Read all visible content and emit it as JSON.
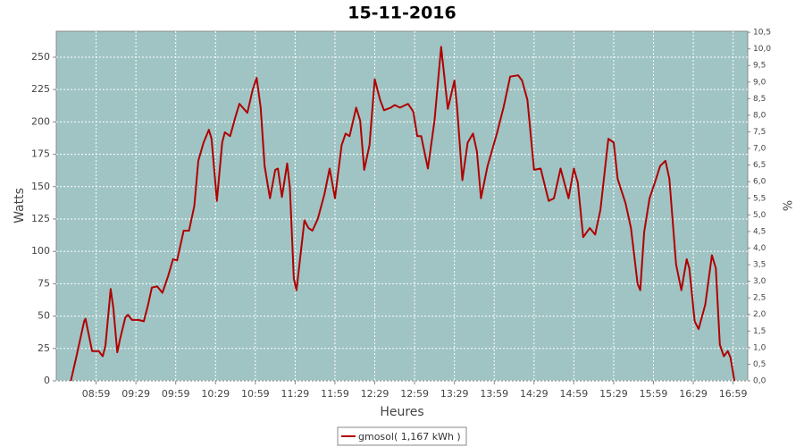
{
  "chart_data": {
    "type": "line",
    "title": "15-11-2016",
    "xlabel": "Heures",
    "ylabel": "Watts",
    "y2label": "%",
    "x": [
      "08:40",
      "08:44",
      "08:50",
      "08:51",
      "08:56",
      "09:01",
      "09:04",
      "09:06",
      "09:10",
      "09:12",
      "09:15",
      "09:17",
      "09:21",
      "09:23",
      "09:26",
      "09:31",
      "09:35",
      "09:38",
      "09:41",
      "09:45",
      "09:49",
      "09:53",
      "09:57",
      "10:00",
      "10:05",
      "10:09",
      "10:13",
      "10:16",
      "10:20",
      "10:24",
      "10:26",
      "10:30",
      "10:34",
      "10:36",
      "10:40",
      "10:44",
      "10:47",
      "10:53",
      "10:57",
      "11:00",
      "11:03",
      "11:06",
      "11:10",
      "11:14",
      "11:16",
      "11:19",
      "11:23",
      "11:25",
      "11:28",
      "11:30",
      "11:36",
      "11:39",
      "11:42",
      "11:46",
      "11:51",
      "11:55",
      "11:59",
      "12:04",
      "12:07",
      "12:10",
      "12:15",
      "12:18",
      "12:21",
      "12:25",
      "12:29",
      "12:33",
      "12:36",
      "12:41",
      "12:44",
      "12:48",
      "12:54",
      "12:58",
      "13:01",
      "13:04",
      "13:09",
      "13:14",
      "13:19",
      "13:24",
      "13:29",
      "13:31",
      "13:35",
      "13:39",
      "13:43",
      "13:46",
      "13:49",
      "13:54",
      "14:01",
      "14:06",
      "14:11",
      "14:17",
      "14:20",
      "14:24",
      "14:29",
      "14:34",
      "14:40",
      "14:44",
      "14:49",
      "14:55",
      "14:59",
      "15:02",
      "15:06",
      "15:11",
      "15:15",
      "15:19",
      "15:25",
      "15:29",
      "15:32",
      "15:38",
      "15:42",
      "15:47",
      "15:49",
      "15:52",
      "15:56",
      "16:00",
      "16:04",
      "16:08",
      "16:11",
      "16:16",
      "16:20",
      "16:24",
      "16:26",
      "16:30",
      "16:33",
      "16:38",
      "16:43",
      "16:46",
      "16:49",
      "16:52",
      "16:55",
      "16:57",
      "17:00"
    ],
    "series": [
      {
        "name": "gmosol( 1,167 kWh )",
        "color": "#b00000",
        "values": [
          0,
          18,
          46,
          48,
          23,
          23,
          19,
          27,
          71,
          56,
          22,
          32,
          49,
          51,
          47,
          47,
          46,
          58,
          72,
          73,
          68,
          80,
          94,
          93,
          116,
          116,
          135,
          170,
          184,
          194,
          187,
          139,
          184,
          192,
          189,
          204,
          214,
          207,
          225,
          234,
          211,
          166,
          141,
          163,
          164,
          142,
          168,
          149,
          79,
          70,
          124,
          118,
          116,
          125,
          144,
          164,
          141,
          182,
          191,
          189,
          211,
          201,
          163,
          182,
          233,
          217,
          209,
          211,
          213,
          211,
          214,
          208,
          189,
          189,
          164,
          201,
          258,
          210,
          232,
          211,
          155,
          184,
          191,
          177,
          141,
          166,
          191,
          211,
          235,
          236,
          232,
          217,
          163,
          164,
          139,
          141,
          164,
          141,
          164,
          153,
          111,
          118,
          113,
          132,
          187,
          184,
          156,
          137,
          118,
          75,
          70,
          115,
          141,
          153,
          166,
          170,
          156,
          90,
          70,
          94,
          87,
          46,
          40,
          59,
          97,
          87,
          28,
          19,
          23,
          18,
          0
        ]
      }
    ],
    "xlim": [
      "08:29",
      "17:10"
    ],
    "xticks": [
      "08:59",
      "09:29",
      "09:59",
      "10:29",
      "10:59",
      "11:29",
      "11:59",
      "12:29",
      "12:59",
      "13:29",
      "13:59",
      "14:29",
      "14:59",
      "15:29",
      "15:59",
      "16:29",
      "16:59"
    ],
    "ylim": [
      0,
      270
    ],
    "yticks": [
      0,
      25,
      50,
      75,
      100,
      125,
      150,
      175,
      200,
      225,
      250
    ],
    "y2lim": [
      0,
      10.53
    ],
    "y2ticks": [
      {
        "value": 0,
        "label": "0,0"
      },
      {
        "value": 0.5,
        "label": "0,5"
      },
      {
        "value": 1,
        "label": "1,0"
      },
      {
        "value": 1.5,
        "label": "1,5"
      },
      {
        "value": 2,
        "label": "2,0"
      },
      {
        "value": 2.5,
        "label": "2,5"
      },
      {
        "value": 3,
        "label": "3,0"
      },
      {
        "value": 3.5,
        "label": "3,5"
      },
      {
        "value": 4,
        "label": "4,0"
      },
      {
        "value": 4.5,
        "label": "4,5"
      },
      {
        "value": 5,
        "label": "5,0"
      },
      {
        "value": 5.5,
        "label": "5,5"
      },
      {
        "value": 6,
        "label": "6,0"
      },
      {
        "value": 6.5,
        "label": "6,5"
      },
      {
        "value": 7,
        "label": "7,0"
      },
      {
        "value": 7.5,
        "label": "7,5"
      },
      {
        "value": 8,
        "label": "8,0"
      },
      {
        "value": 8.5,
        "label": "8,5"
      },
      {
        "value": 9,
        "label": "9,0"
      },
      {
        "value": 9.5,
        "label": "9,5"
      },
      {
        "value": 10,
        "label": "10,0"
      },
      {
        "value": 10.5,
        "label": "10,5"
      }
    ],
    "grid": true,
    "plot_background": "#a0c4c4",
    "legend": "bottom"
  }
}
